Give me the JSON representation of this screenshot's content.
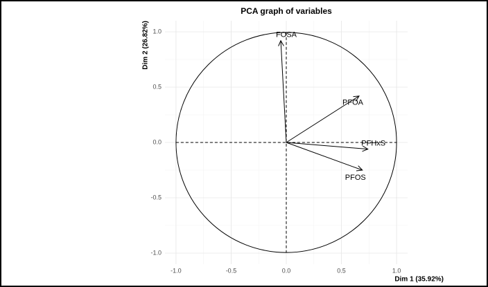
{
  "chart_data": {
    "type": "arrows",
    "title": "PCA graph of variables",
    "xlabel": "Dim 1 (35.92%)",
    "ylabel": "Dim 2 (26.82%)",
    "categories": [
      "FOSA",
      "PFOA",
      "PFHxS",
      "PFOS"
    ],
    "x": [
      -0.05,
      0.66,
      0.74,
      0.69
    ],
    "values": [
      0.92,
      0.42,
      -0.06,
      -0.25
    ],
    "color": "#000000",
    "xlim": [
      -1.1,
      1.1
    ],
    "ylim": [
      -1.1,
      1.1
    ],
    "xticks": [
      {
        "value": -1,
        "label": "-1.0"
      },
      {
        "value": -0.5,
        "label": "-0.5"
      },
      {
        "value": 0,
        "label": "0.0"
      },
      {
        "value": 0.5,
        "label": "0.5"
      },
      {
        "value": 1,
        "label": "1.0"
      }
    ],
    "yticks": [
      {
        "value": -1,
        "label": "-1.0"
      },
      {
        "value": -0.5,
        "label": "-0.5"
      },
      {
        "value": 0,
        "label": "0.0"
      },
      {
        "value": 0.5,
        "label": "0.5"
      },
      {
        "value": 1,
        "label": "1.0"
      }
    ],
    "grid": true
  }
}
